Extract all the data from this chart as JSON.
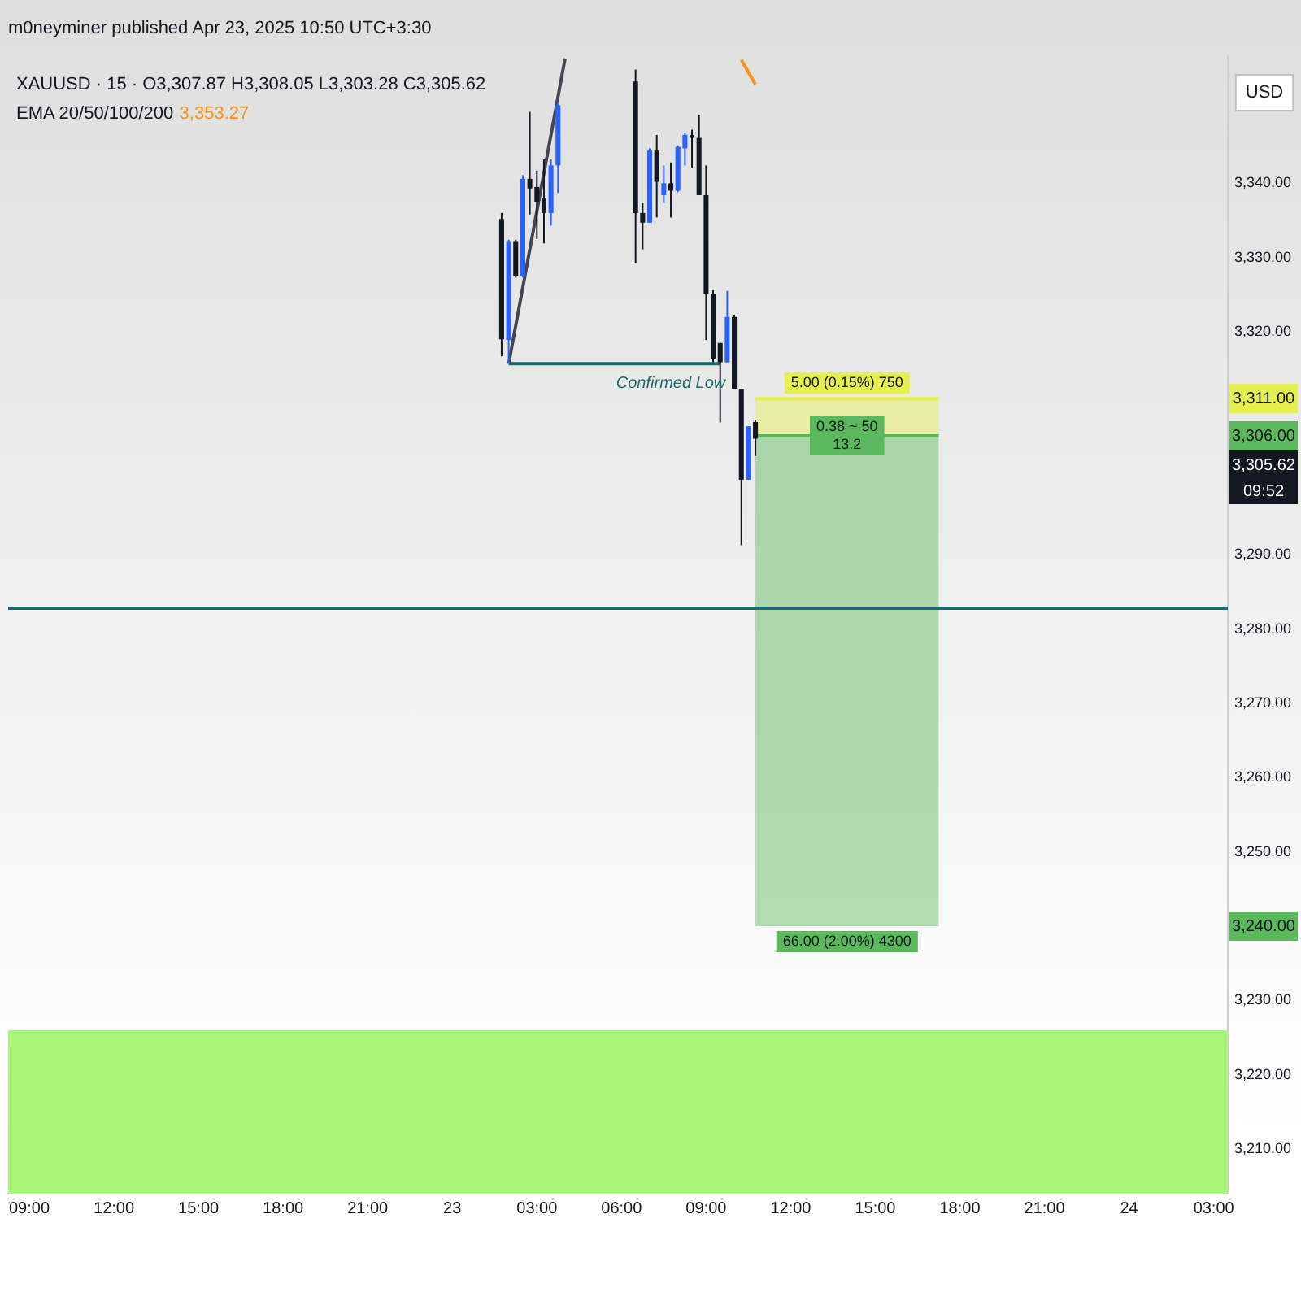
{
  "chart_data": {
    "type": "candlestick",
    "title": "XAUUSD · 15 · O3,307.87 H3,308.05 L3,303.28 C3,305.62",
    "legend": "top left",
    "annotations": [
      "m0neyminer published Apr 23, 2025 10:50 UTC+3:30",
      "USD",
      "3,353.27",
      "09:52",
      "3,311.00",
      "3,306.00",
      "3,305.62",
      "3,240.00",
      {
        "text": "Confirmed Low",
        "x": "2025-04-23T07:45",
        "y": 3315.7
      },
      {
        "text": "5.00 (0.15%) 750",
        "x": "2025-04-23T14:00",
        "y": 3311
      },
      {
        "text": "0.38 ~ 50\n13.2",
        "x": "2025-04-23T14:00",
        "y": 3306
      },
      {
        "text": "66.00 (2.00%) 4300",
        "x": "2025-04-23T14:00",
        "y": 3240
      }
    ],
    "xlim": [
      "2025-04-22T08:15",
      "2025-04-24T03:30"
    ],
    "xticks": [
      {
        "value": "2025-04-22T09:00",
        "label": "09:00"
      },
      {
        "value": "2025-04-22T12:00",
        "label": "12:00"
      },
      {
        "value": "2025-04-22T15:00",
        "label": "15:00"
      },
      {
        "value": "2025-04-22T18:00",
        "label": "18:00"
      },
      {
        "value": "2025-04-22T21:00",
        "label": "21:00"
      },
      {
        "value": "2025-04-23T00:00",
        "label": "23"
      },
      {
        "value": "2025-04-23T03:00",
        "label": "03:00"
      },
      {
        "value": "2025-04-23T06:00",
        "label": "06:00"
      },
      {
        "value": "2025-04-23T09:00",
        "label": "09:00"
      },
      {
        "value": "2025-04-23T12:00",
        "label": "12:00"
      },
      {
        "value": "2025-04-23T15:00",
        "label": "15:00"
      },
      {
        "value": "2025-04-23T18:00",
        "label": "18:00"
      },
      {
        "value": "2025-04-23T21:00",
        "label": "21:00"
      },
      {
        "value": "2025-04-24T00:00",
        "label": "24"
      },
      {
        "value": "2025-04-24T03:00",
        "label": "03:00"
      }
    ],
    "ylim": [
      3204,
      3357
    ],
    "yticks": [
      {
        "value": 3210,
        "label": "3,210.00"
      },
      {
        "value": 3220,
        "label": "3,220.00"
      },
      {
        "value": 3230,
        "label": "3,230.00"
      },
      {
        "value": 3250,
        "label": "3,250.00"
      },
      {
        "value": 3260,
        "label": "3,260.00"
      },
      {
        "value": 3270,
        "label": "3,270.00"
      },
      {
        "value": 3280,
        "label": "3,280.00"
      },
      {
        "value": 3290,
        "label": "3,290.00"
      },
      {
        "value": 3320,
        "label": "3,320.00"
      },
      {
        "value": 3330,
        "label": "3,330.00"
      },
      {
        "value": 3340,
        "label": "3,340.00"
      }
    ],
    "ref_lines": [
      {
        "axis": "y",
        "value": 3282.8,
        "color": "#1a6b6b"
      }
    ],
    "bands": [
      {
        "axis": "y",
        "from": 3204,
        "to": 3226,
        "color": "#a8f57a"
      }
    ],
    "series": [
      {
        "type": "candlestick",
        "x": [
          "2025-04-23T01:45",
          "2025-04-23T02:00",
          "2025-04-23T02:15",
          "2025-04-23T02:30",
          "2025-04-23T02:45",
          "2025-04-23T03:00",
          "2025-04-23T03:15",
          "2025-04-23T03:30",
          "2025-04-23T03:45",
          "2025-04-23T06:30",
          "2025-04-23T06:45",
          "2025-04-23T07:00",
          "2025-04-23T07:15",
          "2025-04-23T07:30",
          "2025-04-23T07:45",
          "2025-04-23T08:00",
          "2025-04-23T08:15",
          "2025-04-23T08:30",
          "2025-04-23T08:45",
          "2025-04-23T09:00",
          "2025-04-23T09:15",
          "2025-04-23T09:30",
          "2025-04-23T09:45",
          "2025-04-23T10:00",
          "2025-04-23T10:15",
          "2025-04-23T10:30",
          "2025-04-23T10:45"
        ],
        "ohlc": [
          [
            3335.2,
            3336.0,
            3316.7,
            3319.0
          ],
          [
            3318.9,
            3332.4,
            3315.7,
            3332.1
          ],
          [
            3332.1,
            3332.4,
            3327.3,
            3327.5
          ],
          [
            3327.5,
            3341.1,
            3327.3,
            3340.6
          ],
          [
            3340.6,
            3349.6,
            3335.8,
            3339.3
          ],
          [
            3339.5,
            3341.7,
            3332.5,
            3337.5
          ],
          [
            3338.0,
            3343.2,
            3331.9,
            3336.0
          ],
          [
            3336.0,
            3343.2,
            3334.3,
            3342.4
          ],
          [
            3342.4,
            3350.9,
            3338.7,
            3350.5
          ],
          [
            3353.7,
            3355.3,
            3329.2,
            3336.0
          ],
          [
            3336.0,
            3337.3,
            3331.1,
            3334.7
          ],
          [
            3334.7,
            3344.7,
            3334.7,
            3344.4
          ],
          [
            3344.4,
            3346.5,
            3335.4,
            3340.2
          ],
          [
            3338.4,
            3342.4,
            3337.3,
            3340.0
          ],
          [
            3340.0,
            3342.8,
            3335.4,
            3339.0
          ],
          [
            3339.0,
            3345.1,
            3338.8,
            3344.9
          ],
          [
            3344.7,
            3346.8,
            3342.4,
            3346.5
          ],
          [
            3346.5,
            3347.2,
            3342.1,
            3346.1
          ],
          [
            3346.1,
            3349.2,
            3338.4,
            3338.4
          ],
          [
            3338.4,
            3342.4,
            3318.9,
            3325.1
          ],
          [
            3325.1,
            3325.6,
            3315.9,
            3316.3
          ],
          [
            3318.5,
            3318.5,
            3307.8,
            3315.9
          ],
          [
            3315.9,
            3325.5,
            3315.9,
            3322.0
          ],
          [
            3322.0,
            3322.2,
            3312.3,
            3312.3
          ],
          [
            3312.3,
            3312.3,
            3291.3,
            3300.1
          ],
          [
            3300.1,
            3307.3,
            3300.1,
            3307.3
          ],
          [
            3307.87,
            3308.05,
            3303.28,
            3305.62
          ]
        ],
        "colors": [
          "#131722",
          "#2962ff",
          "#131722",
          "#2962ff",
          "#131722",
          "#131722",
          "#131722",
          "#2962ff",
          "#2962ff",
          "#131722",
          "#131722",
          "#2962ff",
          "#131722",
          "#2962ff",
          "#131722",
          "#2962ff",
          "#2962ff",
          "#131722",
          "#131722",
          "#131722",
          "#131722",
          "#131722",
          "#2962ff",
          "#131722",
          "#131722",
          "#2962ff",
          "#131722"
        ]
      },
      {
        "type": "line",
        "name": "EMA 20/50/100/200",
        "color": "#f7931a",
        "x": [
          "2025-04-23T10:15",
          "2025-04-23T10:45"
        ],
        "values": [
          3356.6,
          3353.3
        ]
      },
      {
        "type": "line",
        "color": "#434651",
        "x": [
          "2025-04-23T02:00",
          "2025-04-23T04:00"
        ],
        "values": [
          3315.7,
          3356.8
        ]
      },
      {
        "type": "line",
        "color": "#1a6b6b",
        "x": [
          "2025-04-23T02:00",
          "2025-04-23T09:30"
        ],
        "values": [
          3315.7,
          3315.7
        ]
      },
      {
        "type": "line",
        "color": "#5cb85c",
        "x": [
          "2025-04-23T10:45",
          "2025-04-23T17:15"
        ],
        "values": [
          3306,
          3306
        ],
        "lower": [
          3240,
          3240
        ],
        "upper": [
          3306,
          3306
        ]
      },
      {
        "type": "line",
        "color": "#e6ef50",
        "x": [
          "2025-04-23T10:45",
          "2025-04-23T17:15"
        ],
        "values": [
          3311,
          3311
        ],
        "lower": [
          3306,
          3306
        ],
        "upper": [
          3311,
          3311
        ]
      }
    ]
  }
}
